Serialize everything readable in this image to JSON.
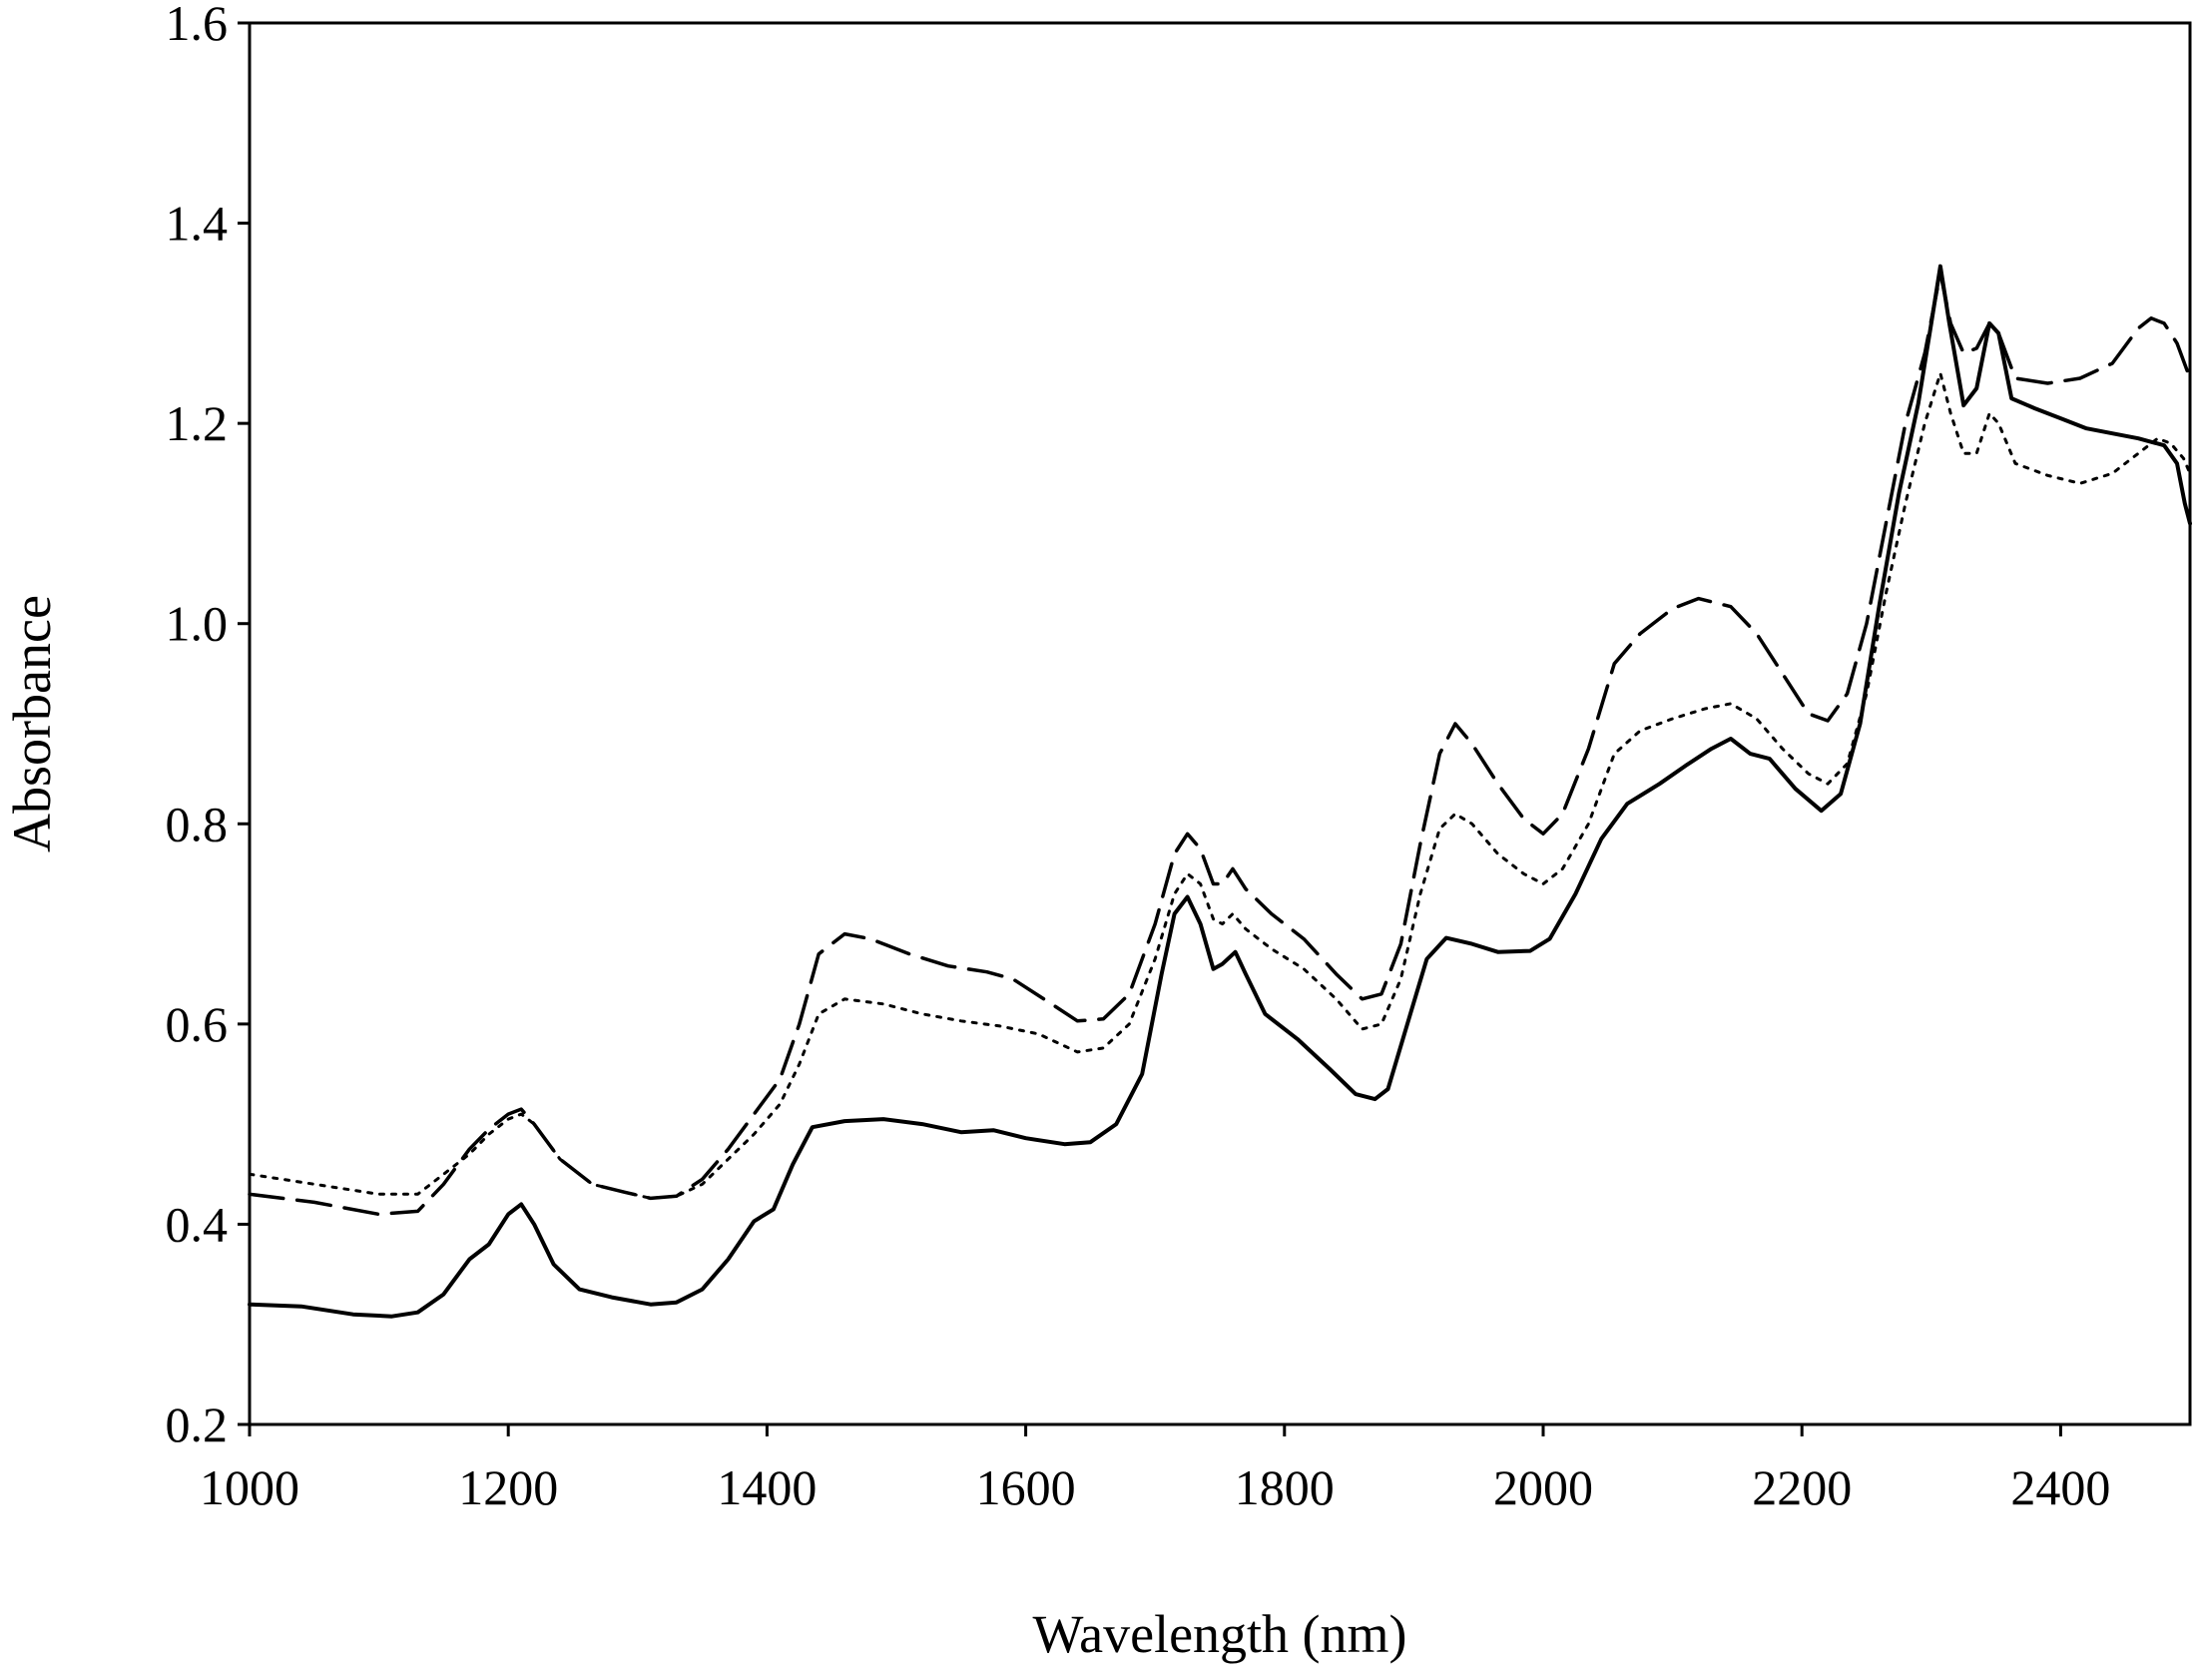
{
  "chart_data": {
    "type": "line",
    "title": "",
    "xlabel": "Wavelength (nm)",
    "ylabel": "Absorbance",
    "xlim": [
      1000,
      2500
    ],
    "ylim": [
      0.2,
      1.6
    ],
    "xticks": [
      1000,
      1200,
      1400,
      1600,
      1800,
      2000,
      2200,
      2400
    ],
    "xtick_labels": [
      "1000",
      "1200",
      "1400",
      "1600",
      "1800",
      "2000",
      "2200",
      "2400"
    ],
    "yticks": [
      0.2,
      0.4,
      0.6,
      0.8,
      1.0,
      1.2,
      1.4,
      1.6
    ],
    "ytick_labels": [
      "0.2",
      "0.4",
      "0.6",
      "0.8",
      "1.0",
      "1.2",
      "1.4",
      "1.6"
    ],
    "grid": false,
    "legend": false,
    "series": [
      {
        "style": "solid",
        "color": "#000000",
        "points": [
          [
            1000,
            0.32
          ],
          [
            1040,
            0.318
          ],
          [
            1080,
            0.31
          ],
          [
            1110,
            0.308
          ],
          [
            1130,
            0.312
          ],
          [
            1150,
            0.33
          ],
          [
            1170,
            0.365
          ],
          [
            1185,
            0.38
          ],
          [
            1200,
            0.41
          ],
          [
            1210,
            0.42
          ],
          [
            1220,
            0.4
          ],
          [
            1235,
            0.36
          ],
          [
            1255,
            0.335
          ],
          [
            1280,
            0.327
          ],
          [
            1310,
            0.32
          ],
          [
            1330,
            0.322
          ],
          [
            1350,
            0.335
          ],
          [
            1370,
            0.365
          ],
          [
            1390,
            0.403
          ],
          [
            1405,
            0.415
          ],
          [
            1420,
            0.46
          ],
          [
            1435,
            0.497
          ],
          [
            1460,
            0.503
          ],
          [
            1490,
            0.505
          ],
          [
            1520,
            0.5
          ],
          [
            1550,
            0.492
          ],
          [
            1575,
            0.494
          ],
          [
            1600,
            0.486
          ],
          [
            1630,
            0.48
          ],
          [
            1650,
            0.482
          ],
          [
            1670,
            0.5
          ],
          [
            1690,
            0.55
          ],
          [
            1705,
            0.65
          ],
          [
            1715,
            0.71
          ],
          [
            1725,
            0.727
          ],
          [
            1735,
            0.7
          ],
          [
            1745,
            0.655
          ],
          [
            1752,
            0.66
          ],
          [
            1762,
            0.672
          ],
          [
            1770,
            0.65
          ],
          [
            1785,
            0.61
          ],
          [
            1810,
            0.585
          ],
          [
            1835,
            0.555
          ],
          [
            1855,
            0.53
          ],
          [
            1870,
            0.525
          ],
          [
            1880,
            0.535
          ],
          [
            1895,
            0.6
          ],
          [
            1910,
            0.665
          ],
          [
            1925,
            0.686
          ],
          [
            1945,
            0.68
          ],
          [
            1965,
            0.672
          ],
          [
            1990,
            0.673
          ],
          [
            2005,
            0.685
          ],
          [
            2025,
            0.73
          ],
          [
            2045,
            0.785
          ],
          [
            2065,
            0.82
          ],
          [
            2090,
            0.84
          ],
          [
            2110,
            0.858
          ],
          [
            2130,
            0.875
          ],
          [
            2145,
            0.885
          ],
          [
            2160,
            0.87
          ],
          [
            2175,
            0.865
          ],
          [
            2195,
            0.835
          ],
          [
            2215,
            0.813
          ],
          [
            2230,
            0.83
          ],
          [
            2245,
            0.9
          ],
          [
            2260,
            1.02
          ],
          [
            2275,
            1.13
          ],
          [
            2290,
            1.22
          ],
          [
            2300,
            1.3
          ],
          [
            2307,
            1.357
          ],
          [
            2314,
            1.3
          ],
          [
            2325,
            1.218
          ],
          [
            2335,
            1.235
          ],
          [
            2345,
            1.3
          ],
          [
            2352,
            1.29
          ],
          [
            2362,
            1.225
          ],
          [
            2380,
            1.215
          ],
          [
            2400,
            1.205
          ],
          [
            2420,
            1.195
          ],
          [
            2440,
            1.19
          ],
          [
            2460,
            1.185
          ],
          [
            2480,
            1.178
          ],
          [
            2490,
            1.16
          ],
          [
            2496,
            1.12
          ],
          [
            2500,
            1.1
          ]
        ]
      },
      {
        "style": "dashed",
        "color": "#000000",
        "points": [
          [
            1000,
            0.43
          ],
          [
            1050,
            0.422
          ],
          [
            1100,
            0.41
          ],
          [
            1130,
            0.413
          ],
          [
            1150,
            0.44
          ],
          [
            1170,
            0.475
          ],
          [
            1185,
            0.495
          ],
          [
            1200,
            0.51
          ],
          [
            1210,
            0.515
          ],
          [
            1220,
            0.5
          ],
          [
            1240,
            0.465
          ],
          [
            1265,
            0.44
          ],
          [
            1290,
            0.432
          ],
          [
            1310,
            0.426
          ],
          [
            1330,
            0.428
          ],
          [
            1350,
            0.445
          ],
          [
            1370,
            0.475
          ],
          [
            1390,
            0.51
          ],
          [
            1410,
            0.545
          ],
          [
            1425,
            0.6
          ],
          [
            1440,
            0.67
          ],
          [
            1460,
            0.69
          ],
          [
            1480,
            0.685
          ],
          [
            1510,
            0.67
          ],
          [
            1540,
            0.658
          ],
          [
            1570,
            0.652
          ],
          [
            1590,
            0.645
          ],
          [
            1620,
            0.62
          ],
          [
            1640,
            0.603
          ],
          [
            1660,
            0.605
          ],
          [
            1680,
            0.63
          ],
          [
            1700,
            0.7
          ],
          [
            1715,
            0.77
          ],
          [
            1725,
            0.79
          ],
          [
            1735,
            0.775
          ],
          [
            1745,
            0.74
          ],
          [
            1752,
            0.74
          ],
          [
            1760,
            0.755
          ],
          [
            1770,
            0.735
          ],
          [
            1790,
            0.71
          ],
          [
            1815,
            0.685
          ],
          [
            1840,
            0.65
          ],
          [
            1860,
            0.625
          ],
          [
            1875,
            0.63
          ],
          [
            1890,
            0.68
          ],
          [
            1905,
            0.78
          ],
          [
            1920,
            0.87
          ],
          [
            1932,
            0.9
          ],
          [
            1945,
            0.88
          ],
          [
            1965,
            0.84
          ],
          [
            1985,
            0.805
          ],
          [
            2000,
            0.79
          ],
          [
            2015,
            0.81
          ],
          [
            2035,
            0.875
          ],
          [
            2055,
            0.96
          ],
          [
            2075,
            0.99
          ],
          [
            2100,
            1.015
          ],
          [
            2120,
            1.025
          ],
          [
            2145,
            1.017
          ],
          [
            2165,
            0.99
          ],
          [
            2185,
            0.95
          ],
          [
            2205,
            0.91
          ],
          [
            2220,
            0.903
          ],
          [
            2235,
            0.93
          ],
          [
            2250,
            1.0
          ],
          [
            2265,
            1.1
          ],
          [
            2280,
            1.2
          ],
          [
            2295,
            1.27
          ],
          [
            2307,
            1.35
          ],
          [
            2315,
            1.3
          ],
          [
            2325,
            1.27
          ],
          [
            2335,
            1.275
          ],
          [
            2345,
            1.3
          ],
          [
            2352,
            1.29
          ],
          [
            2365,
            1.245
          ],
          [
            2390,
            1.24
          ],
          [
            2415,
            1.245
          ],
          [
            2440,
            1.26
          ],
          [
            2460,
            1.295
          ],
          [
            2470,
            1.305
          ],
          [
            2480,
            1.3
          ],
          [
            2490,
            1.28
          ],
          [
            2500,
            1.245
          ]
        ]
      },
      {
        "style": "dotted",
        "color": "#000000",
        "points": [
          [
            1000,
            0.45
          ],
          [
            1050,
            0.44
          ],
          [
            1100,
            0.43
          ],
          [
            1130,
            0.43
          ],
          [
            1150,
            0.45
          ],
          [
            1170,
            0.47
          ],
          [
            1185,
            0.49
          ],
          [
            1200,
            0.505
          ],
          [
            1210,
            0.51
          ],
          [
            1220,
            0.5
          ],
          [
            1240,
            0.465
          ],
          [
            1265,
            0.44
          ],
          [
            1290,
            0.432
          ],
          [
            1310,
            0.426
          ],
          [
            1330,
            0.428
          ],
          [
            1350,
            0.44
          ],
          [
            1370,
            0.465
          ],
          [
            1390,
            0.49
          ],
          [
            1410,
            0.52
          ],
          [
            1425,
            0.56
          ],
          [
            1440,
            0.61
          ],
          [
            1460,
            0.625
          ],
          [
            1490,
            0.62
          ],
          [
            1520,
            0.61
          ],
          [
            1550,
            0.603
          ],
          [
            1580,
            0.598
          ],
          [
            1610,
            0.59
          ],
          [
            1640,
            0.572
          ],
          [
            1660,
            0.576
          ],
          [
            1680,
            0.6
          ],
          [
            1700,
            0.665
          ],
          [
            1715,
            0.73
          ],
          [
            1725,
            0.75
          ],
          [
            1735,
            0.74
          ],
          [
            1745,
            0.705
          ],
          [
            1752,
            0.7
          ],
          [
            1760,
            0.71
          ],
          [
            1770,
            0.695
          ],
          [
            1790,
            0.675
          ],
          [
            1815,
            0.655
          ],
          [
            1840,
            0.625
          ],
          [
            1860,
            0.595
          ],
          [
            1875,
            0.6
          ],
          [
            1890,
            0.645
          ],
          [
            1905,
            0.73
          ],
          [
            1920,
            0.795
          ],
          [
            1932,
            0.81
          ],
          [
            1945,
            0.8
          ],
          [
            1965,
            0.77
          ],
          [
            1985,
            0.75
          ],
          [
            2000,
            0.74
          ],
          [
            2015,
            0.755
          ],
          [
            2035,
            0.8
          ],
          [
            2055,
            0.87
          ],
          [
            2075,
            0.893
          ],
          [
            2100,
            0.905
          ],
          [
            2125,
            0.915
          ],
          [
            2145,
            0.92
          ],
          [
            2165,
            0.905
          ],
          [
            2185,
            0.875
          ],
          [
            2205,
            0.85
          ],
          [
            2220,
            0.84
          ],
          [
            2235,
            0.86
          ],
          [
            2250,
            0.93
          ],
          [
            2265,
            1.03
          ],
          [
            2280,
            1.12
          ],
          [
            2295,
            1.2
          ],
          [
            2307,
            1.25
          ],
          [
            2315,
            1.21
          ],
          [
            2325,
            1.17
          ],
          [
            2335,
            1.17
          ],
          [
            2345,
            1.21
          ],
          [
            2352,
            1.2
          ],
          [
            2365,
            1.16
          ],
          [
            2390,
            1.148
          ],
          [
            2415,
            1.14
          ],
          [
            2440,
            1.15
          ],
          [
            2460,
            1.17
          ],
          [
            2475,
            1.185
          ],
          [
            2485,
            1.18
          ],
          [
            2495,
            1.165
          ],
          [
            2500,
            1.15
          ]
        ]
      }
    ]
  }
}
